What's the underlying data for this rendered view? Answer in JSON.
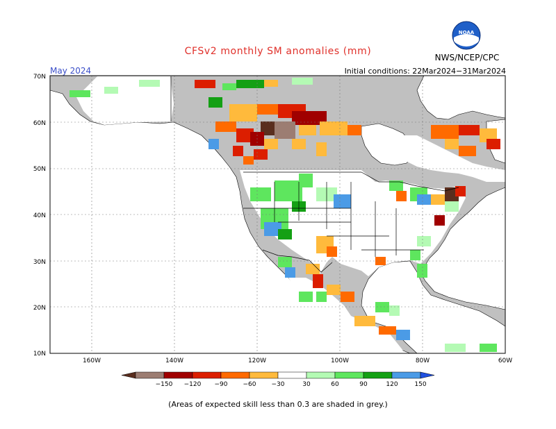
{
  "header": {
    "title": "CFSv2 monthly SM anomalies (mm)",
    "month": "May 2024",
    "initial_conditions": "Initial conditions: 22Mar2024−31Mar2024",
    "organization": "NWS/NCEP/CPC",
    "logo_text": "NOAA"
  },
  "map": {
    "lat_labels": [
      "70N",
      "60N",
      "50N",
      "40N",
      "30N",
      "20N",
      "10N"
    ],
    "lon_labels": [
      "160W",
      "140W",
      "120W",
      "100W",
      "80W",
      "60W"
    ],
    "land_skill_color": "#c0c0c0",
    "ocean_color": "#ffffff"
  },
  "colorbar": {
    "labels": [
      "−150",
      "−120",
      "−90",
      "−60",
      "−30",
      "30",
      "60",
      "90",
      "120",
      "150"
    ],
    "colors": [
      "#5a2e1e",
      "#9c7d72",
      "#a00000",
      "#dc1e00",
      "#ff6a00",
      "#ffba3c",
      "#ffffff",
      "#b4fab4",
      "#5ee65e",
      "#14a014",
      "#4b9be6",
      "#2050e0"
    ]
  },
  "footnote": "(Areas of expected skill less than 0.3 are shaded in grey.)"
}
